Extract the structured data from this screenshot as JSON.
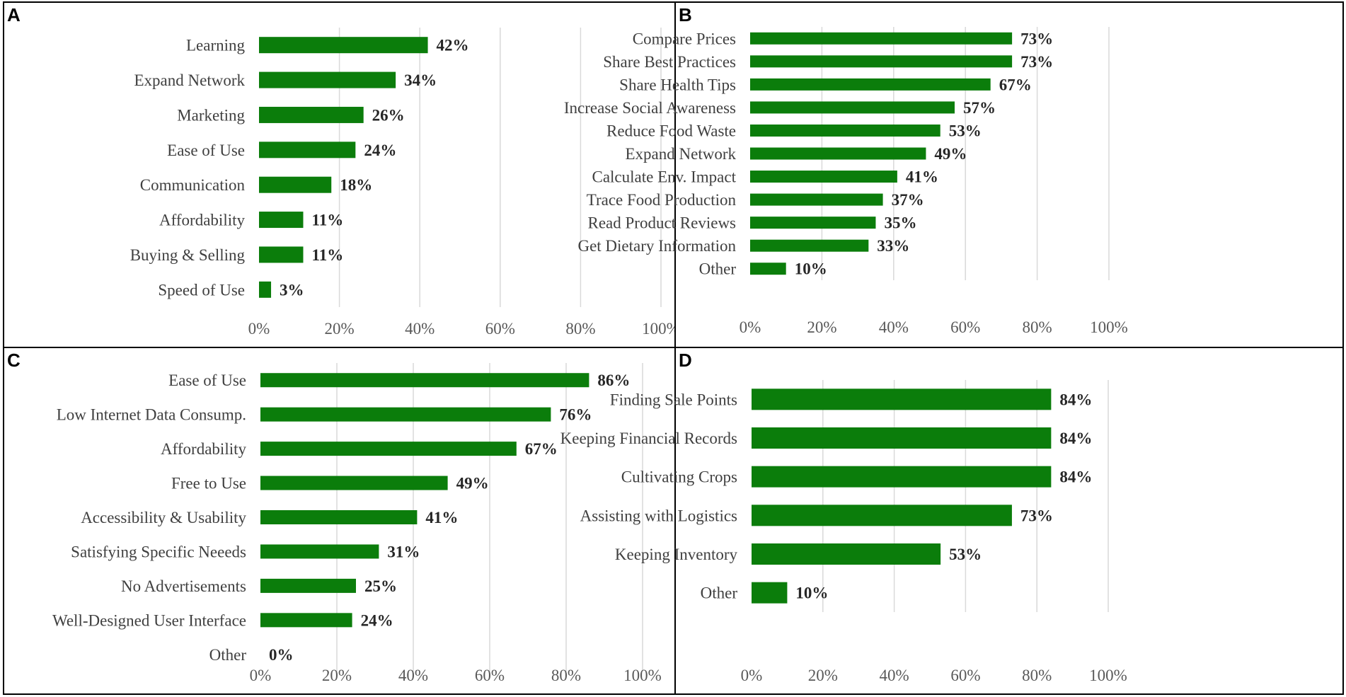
{
  "colors": {
    "bar": "#0b7d0b",
    "grid": "#d9d9d9",
    "border": "#000000"
  },
  "chart_data": [
    {
      "panel": "A",
      "type": "bar",
      "orientation": "horizontal",
      "categories": [
        "Learning",
        "Expand Network",
        "Marketing",
        "Ease of Use",
        "Communication",
        "Affordability",
        "Buying & Selling",
        "Speed of Use"
      ],
      "values": [
        42,
        34,
        26,
        24,
        18,
        11,
        11,
        3
      ],
      "data_labels": [
        "42%",
        "34%",
        "26%",
        "24%",
        "18%",
        "11%",
        "11%",
        "3%"
      ],
      "xlim": [
        0,
        100
      ],
      "xticks": [
        "0%",
        "20%",
        "40%",
        "60%",
        "80%",
        "100%"
      ],
      "grid": true,
      "title": "",
      "xlabel": "",
      "ylabel": ""
    },
    {
      "panel": "B",
      "type": "bar",
      "orientation": "horizontal",
      "categories": [
        "Compare Prices",
        "Share Best Practices",
        "Share Health Tips",
        "Increase Social Awareness",
        "Reduce Food Waste",
        "Expand Network",
        "Calculate Env. Impact",
        "Trace Food Production",
        "Read Product Reviews",
        "Get Dietary Information",
        "Other"
      ],
      "values": [
        73,
        73,
        67,
        57,
        53,
        49,
        41,
        37,
        35,
        33,
        10
      ],
      "data_labels": [
        "73%",
        "73%",
        "67%",
        "57%",
        "53%",
        "49%",
        "41%",
        "37%",
        "35%",
        "33%",
        "10%"
      ],
      "xlim": [
        0,
        100
      ],
      "xticks": [
        "0%",
        "20%",
        "40%",
        "60%",
        "80%",
        "100%"
      ],
      "grid": true,
      "title": "",
      "xlabel": "",
      "ylabel": ""
    },
    {
      "panel": "C",
      "type": "bar",
      "orientation": "horizontal",
      "categories": [
        "Ease of Use",
        "Low Internet Data Consump.",
        "Affordability",
        "Free to Use",
        "Accessibility & Usability",
        "Satisfying Specific Neeeds",
        "No Advertisements",
        "Well-Designed User Interface",
        "Other"
      ],
      "values": [
        86,
        76,
        67,
        49,
        41,
        31,
        25,
        24,
        0
      ],
      "data_labels": [
        "86%",
        "76%",
        "67%",
        "49%",
        "41%",
        "31%",
        "25%",
        "24%",
        "0%"
      ],
      "xlim": [
        0,
        100
      ],
      "xticks": [
        "0%",
        "20%",
        "40%",
        "60%",
        "80%",
        "100%"
      ],
      "grid": true,
      "title": "",
      "xlabel": "",
      "ylabel": ""
    },
    {
      "panel": "D",
      "type": "bar",
      "orientation": "horizontal",
      "categories": [
        "Finding Sale Points",
        "Keeping Financial Records",
        "Cultivating Crops",
        "Assisting with Logistics",
        "Keeping Inventory",
        "Other"
      ],
      "values": [
        84,
        84,
        84,
        73,
        53,
        10
      ],
      "data_labels": [
        "84%",
        "84%",
        "84%",
        "73%",
        "53%",
        "10%"
      ],
      "xlim": [
        0,
        100
      ],
      "xticks": [
        "0%",
        "20%",
        "40%",
        "60%",
        "80%",
        "100%"
      ],
      "grid": true,
      "title": "",
      "xlabel": "",
      "ylabel": ""
    }
  ]
}
